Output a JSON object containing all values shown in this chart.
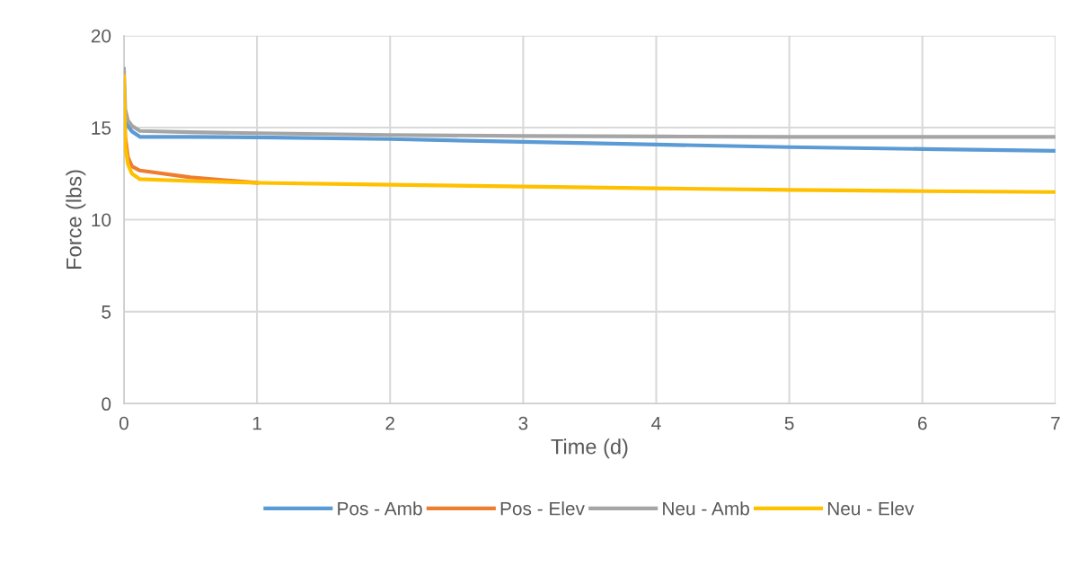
{
  "chart_data": {
    "type": "line",
    "xlabel": "Time (d)",
    "ylabel": "Force (lbs)",
    "xlim": [
      0,
      7
    ],
    "ylim": [
      0,
      20
    ],
    "xticks": [
      0,
      1,
      2,
      3,
      4,
      5,
      6,
      7
    ],
    "yticks": [
      0,
      5,
      10,
      15,
      20
    ],
    "grid": true,
    "legend": "bottom",
    "marker": "none",
    "line_style": "solid",
    "x": [
      0,
      0.01,
      0.03,
      0.06,
      0.12,
      0.5,
      1,
      2,
      3,
      4,
      5,
      6,
      7
    ],
    "series": [
      {
        "name": "Pos - Amb",
        "color": "#5b9bd5",
        "values": [
          null,
          15.6,
          15.1,
          14.8,
          14.5,
          14.5,
          14.47,
          14.38,
          14.23,
          14.08,
          13.94,
          13.84,
          13.74
        ]
      },
      {
        "name": "Pos - Elev",
        "color": "#ed7d31",
        "values": [
          17.5,
          14.5,
          13.4,
          12.9,
          12.67,
          12.3,
          12.0,
          null,
          null,
          null,
          null,
          null,
          null
        ]
      },
      {
        "name": "Neu - Amb",
        "color": "#a5a5a5",
        "values": [
          18.2,
          16.0,
          15.4,
          15.1,
          14.82,
          14.75,
          14.7,
          14.6,
          14.55,
          14.52,
          14.5,
          14.5,
          14.5
        ]
      },
      {
        "name": "Neu - Elev",
        "color": "#ffc000",
        "values": [
          17.8,
          14.0,
          13.0,
          12.5,
          12.2,
          12.1,
          12.0,
          11.9,
          11.8,
          11.7,
          11.62,
          11.55,
          11.5
        ]
      }
    ]
  }
}
